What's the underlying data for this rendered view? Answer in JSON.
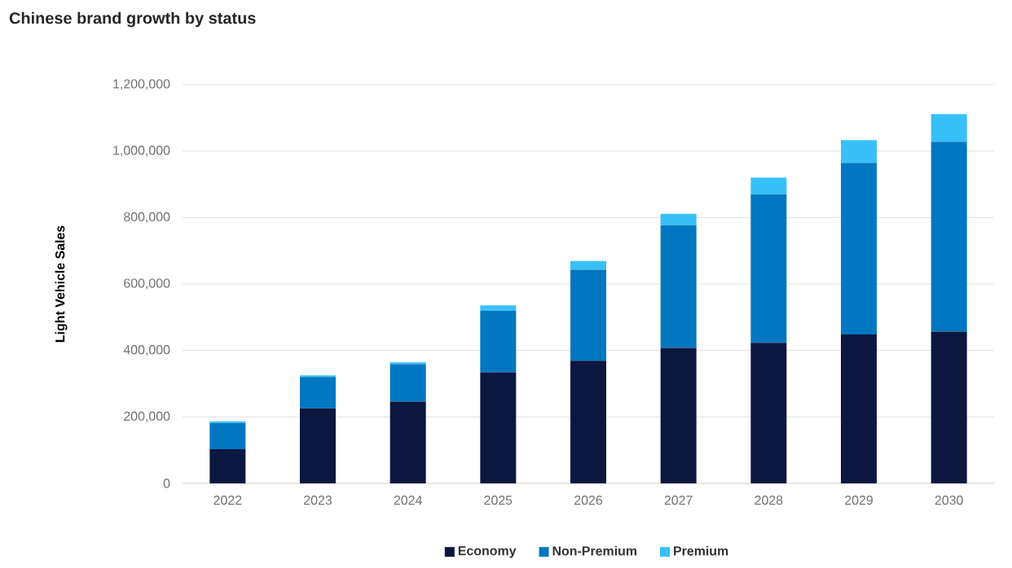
{
  "chart_data": {
    "type": "bar",
    "title": "Chinese brand growth by status",
    "ylabel": "Light Vehicle Sales",
    "categories": [
      "2022",
      "2023",
      "2024",
      "2025",
      "2026",
      "2027",
      "2028",
      "2029",
      "2030"
    ],
    "stacked": true,
    "series": [
      {
        "name": "Economy",
        "color": "#0c1740",
        "values": [
          103000,
          226000,
          246000,
          334000,
          369000,
          408000,
          423000,
          448000,
          457000
        ]
      },
      {
        "name": "Non-Premium",
        "color": "#0077c0",
        "values": [
          79000,
          94000,
          113000,
          186000,
          274000,
          369000,
          447000,
          516000,
          571000
        ]
      },
      {
        "name": "Premium",
        "color": "#38c0f8",
        "values": [
          5000,
          5000,
          5000,
          16000,
          26000,
          34000,
          50000,
          69000,
          83000
        ]
      }
    ],
    "ylim": [
      0,
      1200000
    ],
    "yticks": [
      {
        "value": 0,
        "label": "0"
      },
      {
        "value": 200000,
        "label": "200,000"
      },
      {
        "value": 400000,
        "label": "400,000"
      },
      {
        "value": 600000,
        "label": "600,000"
      },
      {
        "value": 800000,
        "label": "800,000"
      },
      {
        "value": 1000000,
        "label": "1,000,000"
      },
      {
        "value": 1200000,
        "label": "1,200,000"
      }
    ],
    "grid": "y",
    "legend": "bottom"
  }
}
